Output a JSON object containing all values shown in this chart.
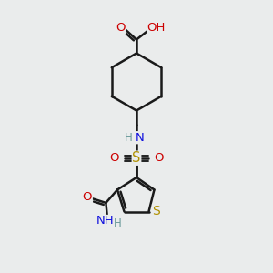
{
  "bg_color": "#eaecec",
  "bond_color": "#1a1a1a",
  "bond_width": 1.8,
  "atom_colors": {
    "C": "#1a1a1a",
    "H": "#6a9a9a",
    "N": "#1010dd",
    "O": "#cc0000",
    "S": "#b09000"
  },
  "font_size": 9.5,
  "fig_w": 3.0,
  "fig_h": 3.0,
  "dpi": 100
}
